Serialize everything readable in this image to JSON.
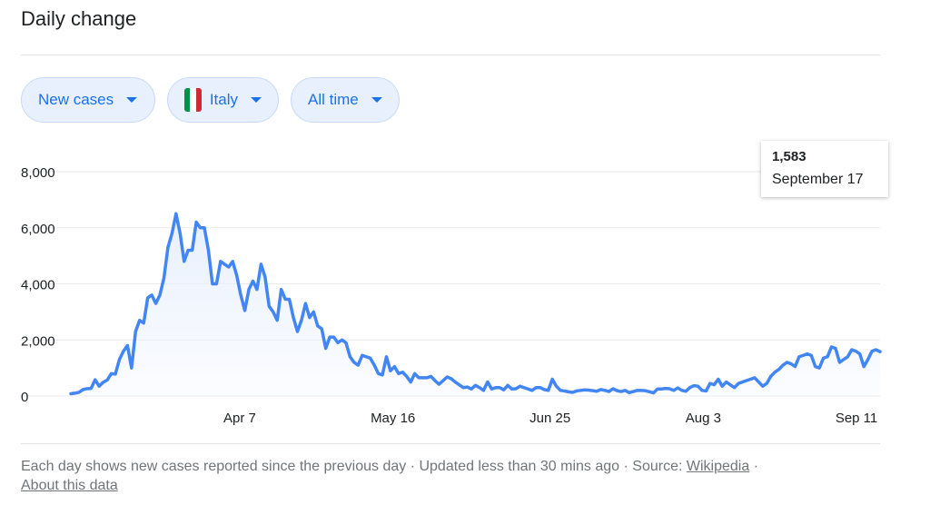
{
  "header": {
    "title": "Daily change"
  },
  "filters": {
    "metric": "New cases",
    "country": "Italy",
    "range": "All time",
    "flag_colors": [
      "#009246",
      "#ffffff",
      "#ce2b37"
    ]
  },
  "tooltip": {
    "value": "1,583",
    "date": "September 17"
  },
  "footer": {
    "note": "Each day shows new cases reported since the previous day",
    "updated": "Updated less than 30 mins ago",
    "source_label": "Source:",
    "source_link": "Wikipedia",
    "about_link": "About this data",
    "separator": "·"
  },
  "colors": {
    "line": "#4285f4",
    "area": "#e8f0fe",
    "grid": "#e8eaed",
    "accent": "#1a73e8"
  },
  "chart_data": {
    "type": "area",
    "title": "Daily change",
    "x_start": "2020-02-24",
    "x_end": "2020-09-17",
    "x_tick_labels": [
      "Apr 7",
      "May 16",
      "Jun 25",
      "Aug 3",
      "Sep 11"
    ],
    "x_tick_dates": [
      "2020-04-07",
      "2020-05-16",
      "2020-06-25",
      "2020-08-03",
      "2020-09-11"
    ],
    "y_ticks": [
      0,
      2000,
      4000,
      6000,
      8000
    ],
    "y_tick_labels": [
      "0",
      "2,000",
      "4,000",
      "6,000",
      "8,000"
    ],
    "ylim": [
      0,
      8000
    ],
    "grid": true,
    "series": [
      {
        "values": [
          80,
          100,
          130,
          230,
          260,
          270,
          580,
          350,
          490,
          570,
          800,
          780,
          1300,
          1600,
          1800,
          1000,
          2300,
          2700,
          2600,
          3500,
          3600,
          3300,
          3600,
          4200,
          5300,
          5800,
          6500,
          5800,
          4800,
          5200,
          5200,
          6200,
          6000,
          6000,
          5200,
          4000,
          4000,
          4800,
          4700,
          4600,
          4800,
          4300,
          3600,
          3050,
          3800,
          4100,
          3800,
          4700,
          4250,
          3200,
          3000,
          2700,
          3800,
          3450,
          3450,
          2800,
          2300,
          2700,
          3300,
          2800,
          3000,
          2500,
          2400,
          1700,
          2100,
          2100,
          1900,
          2000,
          1900,
          1400,
          1200,
          1100,
          1450,
          1400,
          1350,
          1100,
          800,
          750,
          1400,
          900,
          1050,
          800,
          850,
          700,
          500,
          800,
          650,
          650,
          650,
          700,
          550,
          420,
          550,
          680,
          620,
          500,
          400,
          300,
          320,
          250,
          380,
          300,
          200,
          500,
          250,
          300,
          300,
          220,
          380,
          250,
          260,
          350,
          300,
          250,
          200,
          300,
          300,
          230,
          200,
          600,
          350,
          200,
          180,
          150,
          130,
          180,
          200,
          220,
          210,
          190,
          170,
          230,
          200,
          160,
          260,
          190,
          160,
          200,
          120,
          160,
          200,
          200,
          190,
          150,
          110,
          250,
          250,
          270,
          260,
          200,
          290,
          200,
          170,
          300,
          370,
          350,
          200,
          180,
          450,
          400,
          600,
          350,
          500,
          400,
          300,
          450,
          500,
          550,
          600,
          650,
          500,
          350,
          450,
          700,
          850,
          950,
          1100,
          1200,
          1150,
          1050,
          1400,
          1450,
          1500,
          1450,
          1050,
          1000,
          1350,
          1400,
          1750,
          1700,
          1200,
          1300,
          1400,
          1650,
          1600,
          1500,
          1050,
          1300,
          1600,
          1650,
          1583
        ]
      }
    ]
  }
}
